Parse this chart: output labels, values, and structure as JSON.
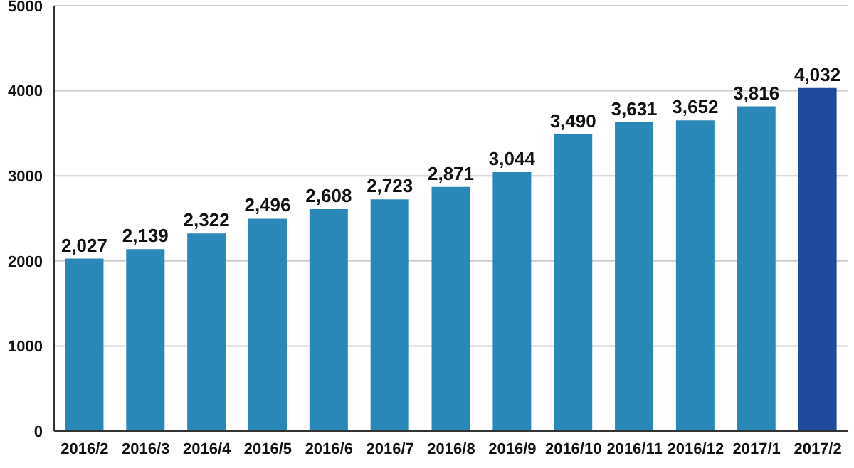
{
  "chart_data": {
    "type": "bar",
    "categories": [
      "2016/2",
      "2016/3",
      "2016/4",
      "2016/5",
      "2016/6",
      "2016/7",
      "2016/8",
      "2016/9",
      "2016/10",
      "2016/11",
      "2016/12",
      "2017/1",
      "2017/2"
    ],
    "values": [
      2027,
      2139,
      2322,
      2496,
      2608,
      2723,
      2871,
      3044,
      3490,
      3631,
      3652,
      3816,
      4032
    ],
    "colors": [
      "#2a88b8",
      "#2a88b8",
      "#2a88b8",
      "#2a88b8",
      "#2a88b8",
      "#2a88b8",
      "#2a88b8",
      "#2a88b8",
      "#2a88b8",
      "#2a88b8",
      "#2a88b8",
      "#2a88b8",
      "#1f4a9e"
    ],
    "value_labels": [
      "2,027",
      "2,139",
      "2,322",
      "2,496",
      "2,608",
      "2,723",
      "2,871",
      "3,044",
      "3,490",
      "3,631",
      "3,652",
      "3,816",
      "4,032"
    ],
    "ylim": [
      0,
      5000
    ],
    "yticks": [
      0,
      1000,
      2000,
      3000,
      4000,
      5000
    ],
    "grid": "y"
  }
}
